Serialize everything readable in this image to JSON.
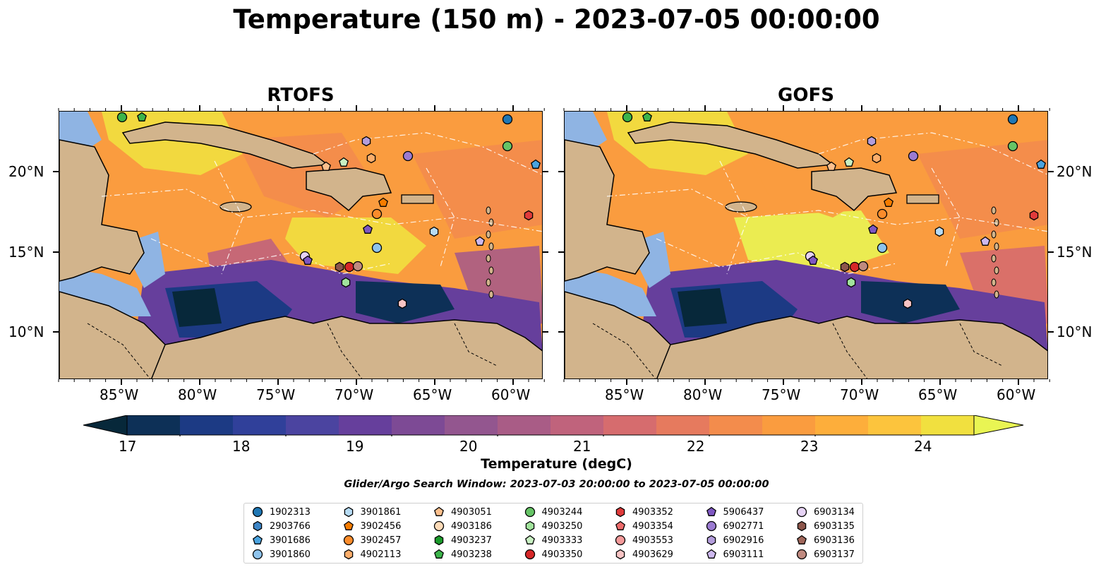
{
  "title": "Temperature (150 m) - 2023-07-05 00:00:00",
  "panels": [
    {
      "title": "RTOFS"
    },
    {
      "title": "GOFS"
    }
  ],
  "x_ticks": [
    "85°W",
    "80°W",
    "75°W",
    "70°W",
    "65°W",
    "60°W"
  ],
  "y_ticks": [
    "20°N",
    "15°N",
    "10°N"
  ],
  "colorbar": {
    "label": "Temperature (degC)",
    "ticks": [
      "17",
      "18",
      "19",
      "20",
      "21",
      "22",
      "23",
      "24"
    ],
    "range": [
      16.5,
      24.5
    ],
    "colors": [
      "#07283a",
      "#0d3057",
      "#1c3a84",
      "#30409a",
      "#4b44a0",
      "#663f9c",
      "#7d4a95",
      "#93568f",
      "#a95c86",
      "#c0637c",
      "#d66c6e",
      "#e67a5e",
      "#f38c4c",
      "#fa9c3f",
      "#fdae3b",
      "#fcc43d",
      "#f1e03f",
      "#e9f553"
    ],
    "extend": "both"
  },
  "search_window": "Glider/Argo Search Window: 2023-07-03 20:00:00 to 2023-07-05 00:00:00",
  "legend": {
    "columns": [
      [
        {
          "label": "1902313",
          "marker": "circle",
          "color": "#1f77b4"
        },
        {
          "label": "2903766",
          "marker": "hexagon",
          "color": "#3d85c6"
        },
        {
          "label": "3901686",
          "marker": "pentagon",
          "color": "#4aa3df"
        },
        {
          "label": "3901860",
          "marker": "circle",
          "color": "#8ec3ec"
        }
      ],
      [
        {
          "label": "3901861",
          "marker": "hexagon",
          "color": "#b7dcf5"
        },
        {
          "label": "3902456",
          "marker": "pentagon",
          "color": "#f57c00"
        },
        {
          "label": "3902457",
          "marker": "circle",
          "color": "#fb8c2b"
        },
        {
          "label": "4902113",
          "marker": "hexagon",
          "color": "#fdae6b"
        }
      ],
      [
        {
          "label": "4903051",
          "marker": "pentagon",
          "color": "#fdc08d"
        },
        {
          "label": "4903186",
          "marker": "circle",
          "color": "#fddbb8"
        },
        {
          "label": "4903237",
          "marker": "hexagon",
          "color": "#1a9a2a"
        },
        {
          "label": "4903238",
          "marker": "pentagon",
          "color": "#3cb44b"
        }
      ],
      [
        {
          "label": "4903244",
          "marker": "circle",
          "color": "#66c466"
        },
        {
          "label": "4903250",
          "marker": "hexagon",
          "color": "#a1e39c"
        },
        {
          "label": "4903333",
          "marker": "pentagon",
          "color": "#c8f0c2"
        },
        {
          "label": "4903350",
          "marker": "circle",
          "color": "#d62728"
        }
      ],
      [
        {
          "label": "4903352",
          "marker": "hexagon",
          "color": "#e03b3b"
        },
        {
          "label": "4903354",
          "marker": "pentagon",
          "color": "#ec6b6b"
        },
        {
          "label": "4903553",
          "marker": "circle",
          "color": "#f39a9a"
        },
        {
          "label": "4903629",
          "marker": "hexagon",
          "color": "#f8c4c4"
        }
      ],
      [
        {
          "label": "5906437",
          "marker": "pentagon",
          "color": "#7e57c2"
        },
        {
          "label": "6902771",
          "marker": "circle",
          "color": "#9b7bd1"
        },
        {
          "label": "6902916",
          "marker": "hexagon",
          "color": "#b39ddb"
        },
        {
          "label": "6903111",
          "marker": "pentagon",
          "color": "#cdb8ee"
        }
      ],
      [
        {
          "label": "6903134",
          "marker": "circle",
          "color": "#e6d3f5"
        },
        {
          "label": "6903135",
          "marker": "hexagon",
          "color": "#8c564b"
        },
        {
          "label": "6903136",
          "marker": "pentagon",
          "color": "#a0675b"
        },
        {
          "label": "6903137",
          "marker": "circle",
          "color": "#c08a80"
        }
      ]
    ]
  },
  "map_colors": {
    "land": "#d2b48c",
    "shelf": "#8fb4e3",
    "deep_cold": "#07283a"
  }
}
